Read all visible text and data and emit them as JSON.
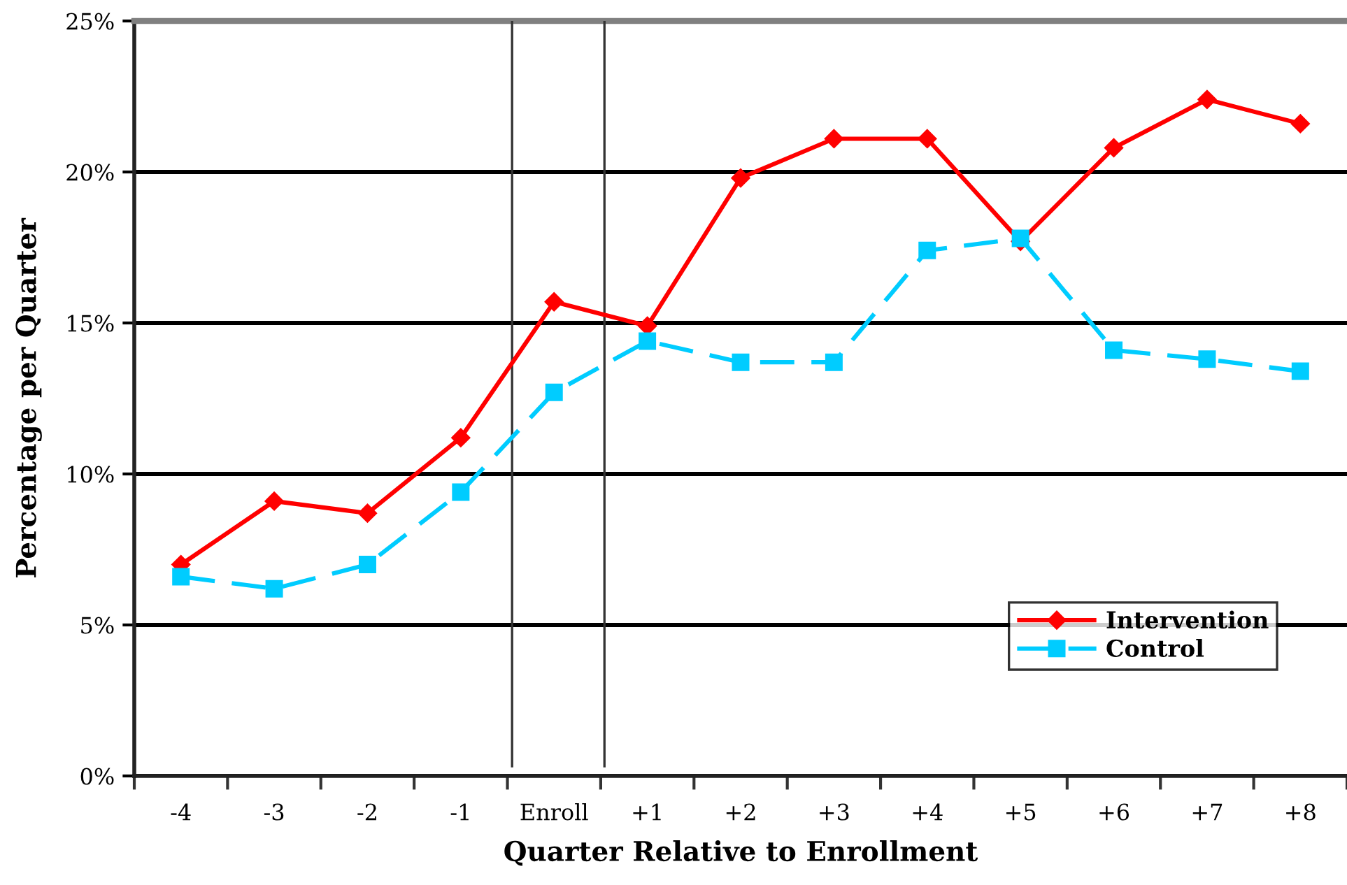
{
  "chart_data": {
    "type": "line",
    "xlabel": "Quarter Relative to Enrollment",
    "ylabel": "Percentage per Quarter",
    "x": [
      -4,
      -3,
      -2,
      -1,
      0,
      1,
      2,
      3,
      4,
      5,
      6,
      7,
      8
    ],
    "xlim": [
      -4.5,
      8.5
    ],
    "xticks": [
      -4,
      -3,
      -2,
      -1,
      {
        "value": 0,
        "label": "Enroll"
      },
      {
        "value": 1,
        "label": "+1"
      },
      {
        "value": 2,
        "label": "+2"
      },
      {
        "value": 3,
        "label": "+3"
      },
      {
        "value": 4,
        "label": "+4"
      },
      {
        "value": 5,
        "label": "+5"
      },
      {
        "value": 6,
        "label": "+6"
      },
      {
        "value": 7,
        "label": "+7"
      },
      {
        "value": 8,
        "label": "+8"
      }
    ],
    "ylim": [
      0,
      25
    ],
    "yticks": [
      {
        "value": 0,
        "label": "0%"
      },
      {
        "value": 5,
        "label": "5%"
      },
      {
        "value": 10,
        "label": "10%"
      },
      {
        "value": 15,
        "label": "15%"
      },
      {
        "value": 20,
        "label": "20%"
      },
      {
        "value": 25,
        "label": "25%"
      }
    ],
    "grid": "y",
    "legend": "bottom right",
    "series": [
      {
        "name": "Intervention",
        "color": "#ff0000",
        "marker": "diamond",
        "line_style": "solid",
        "values": [
          7.0,
          9.1,
          8.7,
          11.2,
          15.7,
          14.9,
          19.8,
          21.1,
          21.1,
          17.7,
          20.8,
          22.4,
          21.6
        ]
      },
      {
        "name": "Control",
        "color": "#00ccff",
        "marker": "square",
        "line_style": "dashed",
        "values": [
          6.6,
          6.2,
          7.0,
          9.4,
          12.7,
          14.4,
          13.7,
          13.7,
          17.4,
          17.8,
          14.1,
          13.8,
          13.4
        ]
      }
    ],
    "ref_lines": [
      {
        "axis": "x",
        "value": -0.45,
        "color": "#333333"
      },
      {
        "axis": "x",
        "value": 0.54,
        "color": "#333333"
      }
    ]
  }
}
